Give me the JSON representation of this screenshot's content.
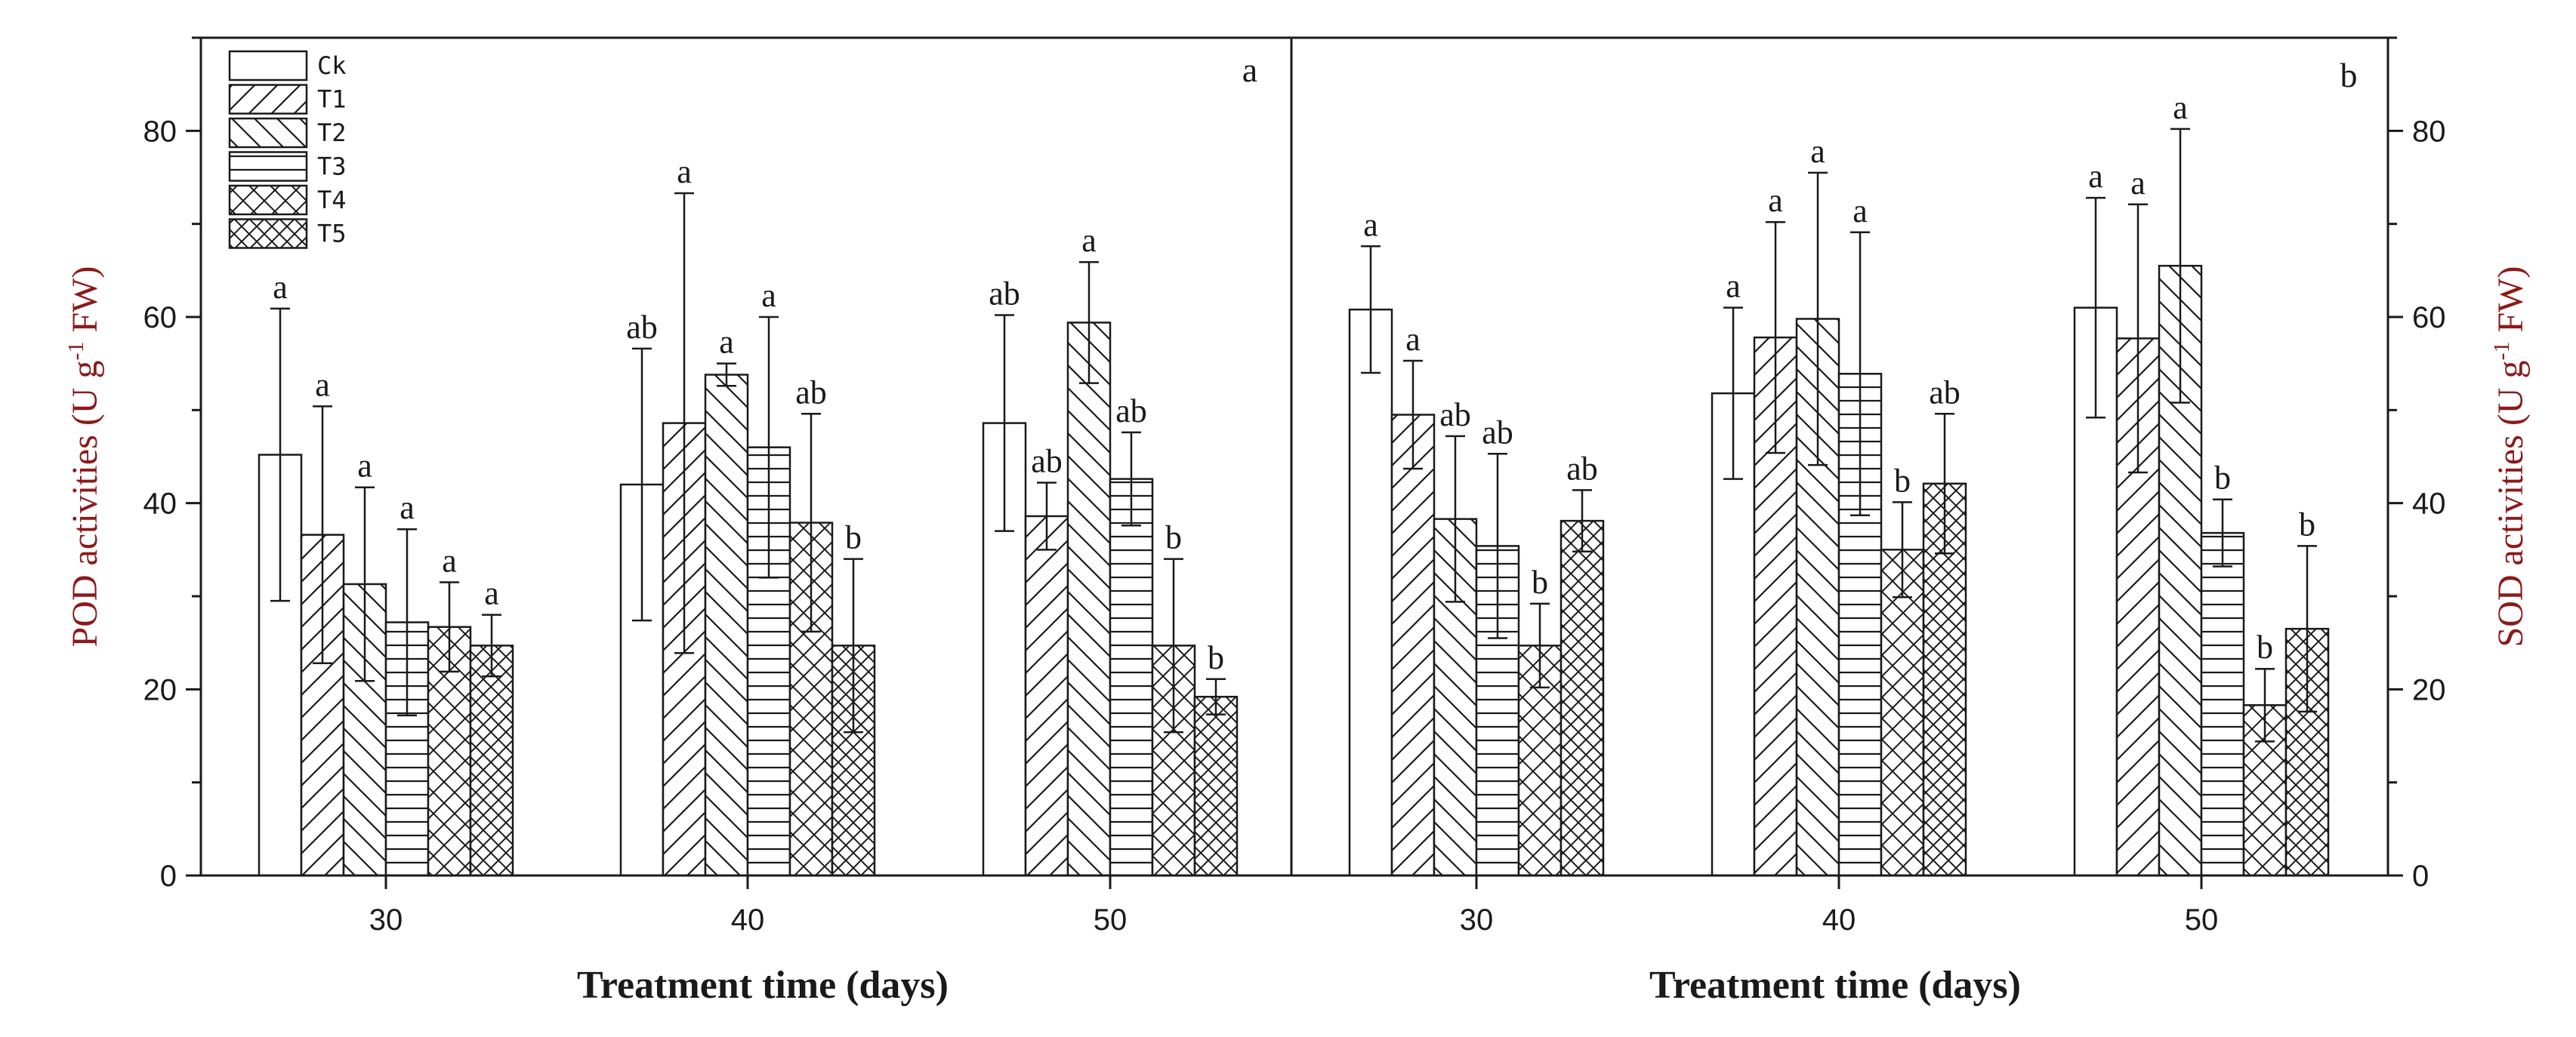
{
  "chart_data": [
    {
      "panel_label": "a",
      "type": "bar",
      "xlabel": "Treatment time (days)",
      "ylabel": "POD activities (U g",
      "ylabel_sup": "-1",
      "ylabel_end": " FW)",
      "categories": [
        "30",
        "40",
        "50"
      ],
      "ylim": [
        0,
        90
      ],
      "yticks": [
        0,
        20,
        40,
        60,
        80
      ],
      "series": [
        {
          "name": "Ck",
          "values": [
            45.2,
            42.0,
            48.6
          ],
          "err": [
            15.7,
            14.6,
            11.6
          ],
          "sig": [
            "a",
            "ab",
            "ab"
          ]
        },
        {
          "name": "T1",
          "values": [
            36.6,
            48.6,
            38.6
          ],
          "err": [
            13.8,
            24.7,
            3.6
          ],
          "sig": [
            "a",
            "a",
            "ab"
          ]
        },
        {
          "name": "T2",
          "values": [
            31.3,
            53.8,
            59.4
          ],
          "err": [
            10.4,
            1.2,
            6.5
          ],
          "sig": [
            "a",
            "a",
            "a"
          ]
        },
        {
          "name": "T3",
          "values": [
            27.2,
            46.0,
            42.6
          ],
          "err": [
            10.0,
            14.0,
            5.0
          ],
          "sig": [
            "a",
            "a",
            "ab"
          ]
        },
        {
          "name": "T4",
          "values": [
            26.7,
            37.9,
            24.7
          ],
          "err": [
            4.8,
            11.7,
            9.3
          ],
          "sig": [
            "a",
            "ab",
            "b"
          ]
        },
        {
          "name": "T5",
          "values": [
            24.7,
            24.7,
            19.2
          ],
          "err": [
            3.3,
            9.3,
            1.9
          ],
          "sig": [
            "a",
            "b",
            "b"
          ]
        }
      ]
    },
    {
      "panel_label": "b",
      "type": "bar",
      "xlabel": "Treatment time (days)",
      "ylabel": "SOD activities (U g",
      "ylabel_sup": "-1",
      "ylabel_end": " FW)",
      "categories": [
        "30",
        "40",
        "50"
      ],
      "ylim": [
        0,
        90
      ],
      "yticks": [
        0,
        20,
        40,
        60,
        80
      ],
      "series": [
        {
          "name": "Ck",
          "values": [
            60.8,
            51.8,
            61.0
          ],
          "err": [
            6.8,
            9.2,
            11.8
          ],
          "sig": [
            "a",
            "a",
            "a"
          ]
        },
        {
          "name": "T1",
          "values": [
            49.5,
            57.8,
            57.7
          ],
          "err": [
            5.8,
            12.4,
            14.4
          ],
          "sig": [
            "a",
            "a",
            "a"
          ]
        },
        {
          "name": "T2",
          "values": [
            38.3,
            59.8,
            65.5
          ],
          "err": [
            8.9,
            15.7,
            14.7
          ],
          "sig": [
            "ab",
            "a",
            "a"
          ]
        },
        {
          "name": "T3",
          "values": [
            35.4,
            53.9,
            36.8
          ],
          "err": [
            9.9,
            15.2,
            3.6
          ],
          "sig": [
            "ab",
            "a",
            "b"
          ]
        },
        {
          "name": "T4",
          "values": [
            24.7,
            35.0,
            18.3
          ],
          "err": [
            4.5,
            5.1,
            3.9
          ],
          "sig": [
            "b",
            "b",
            "b"
          ]
        },
        {
          "name": "T5",
          "values": [
            38.1,
            42.1,
            26.5
          ],
          "err": [
            3.3,
            7.5,
            8.9
          ],
          "sig": [
            "ab",
            "ab",
            "b"
          ]
        }
      ]
    }
  ]
}
